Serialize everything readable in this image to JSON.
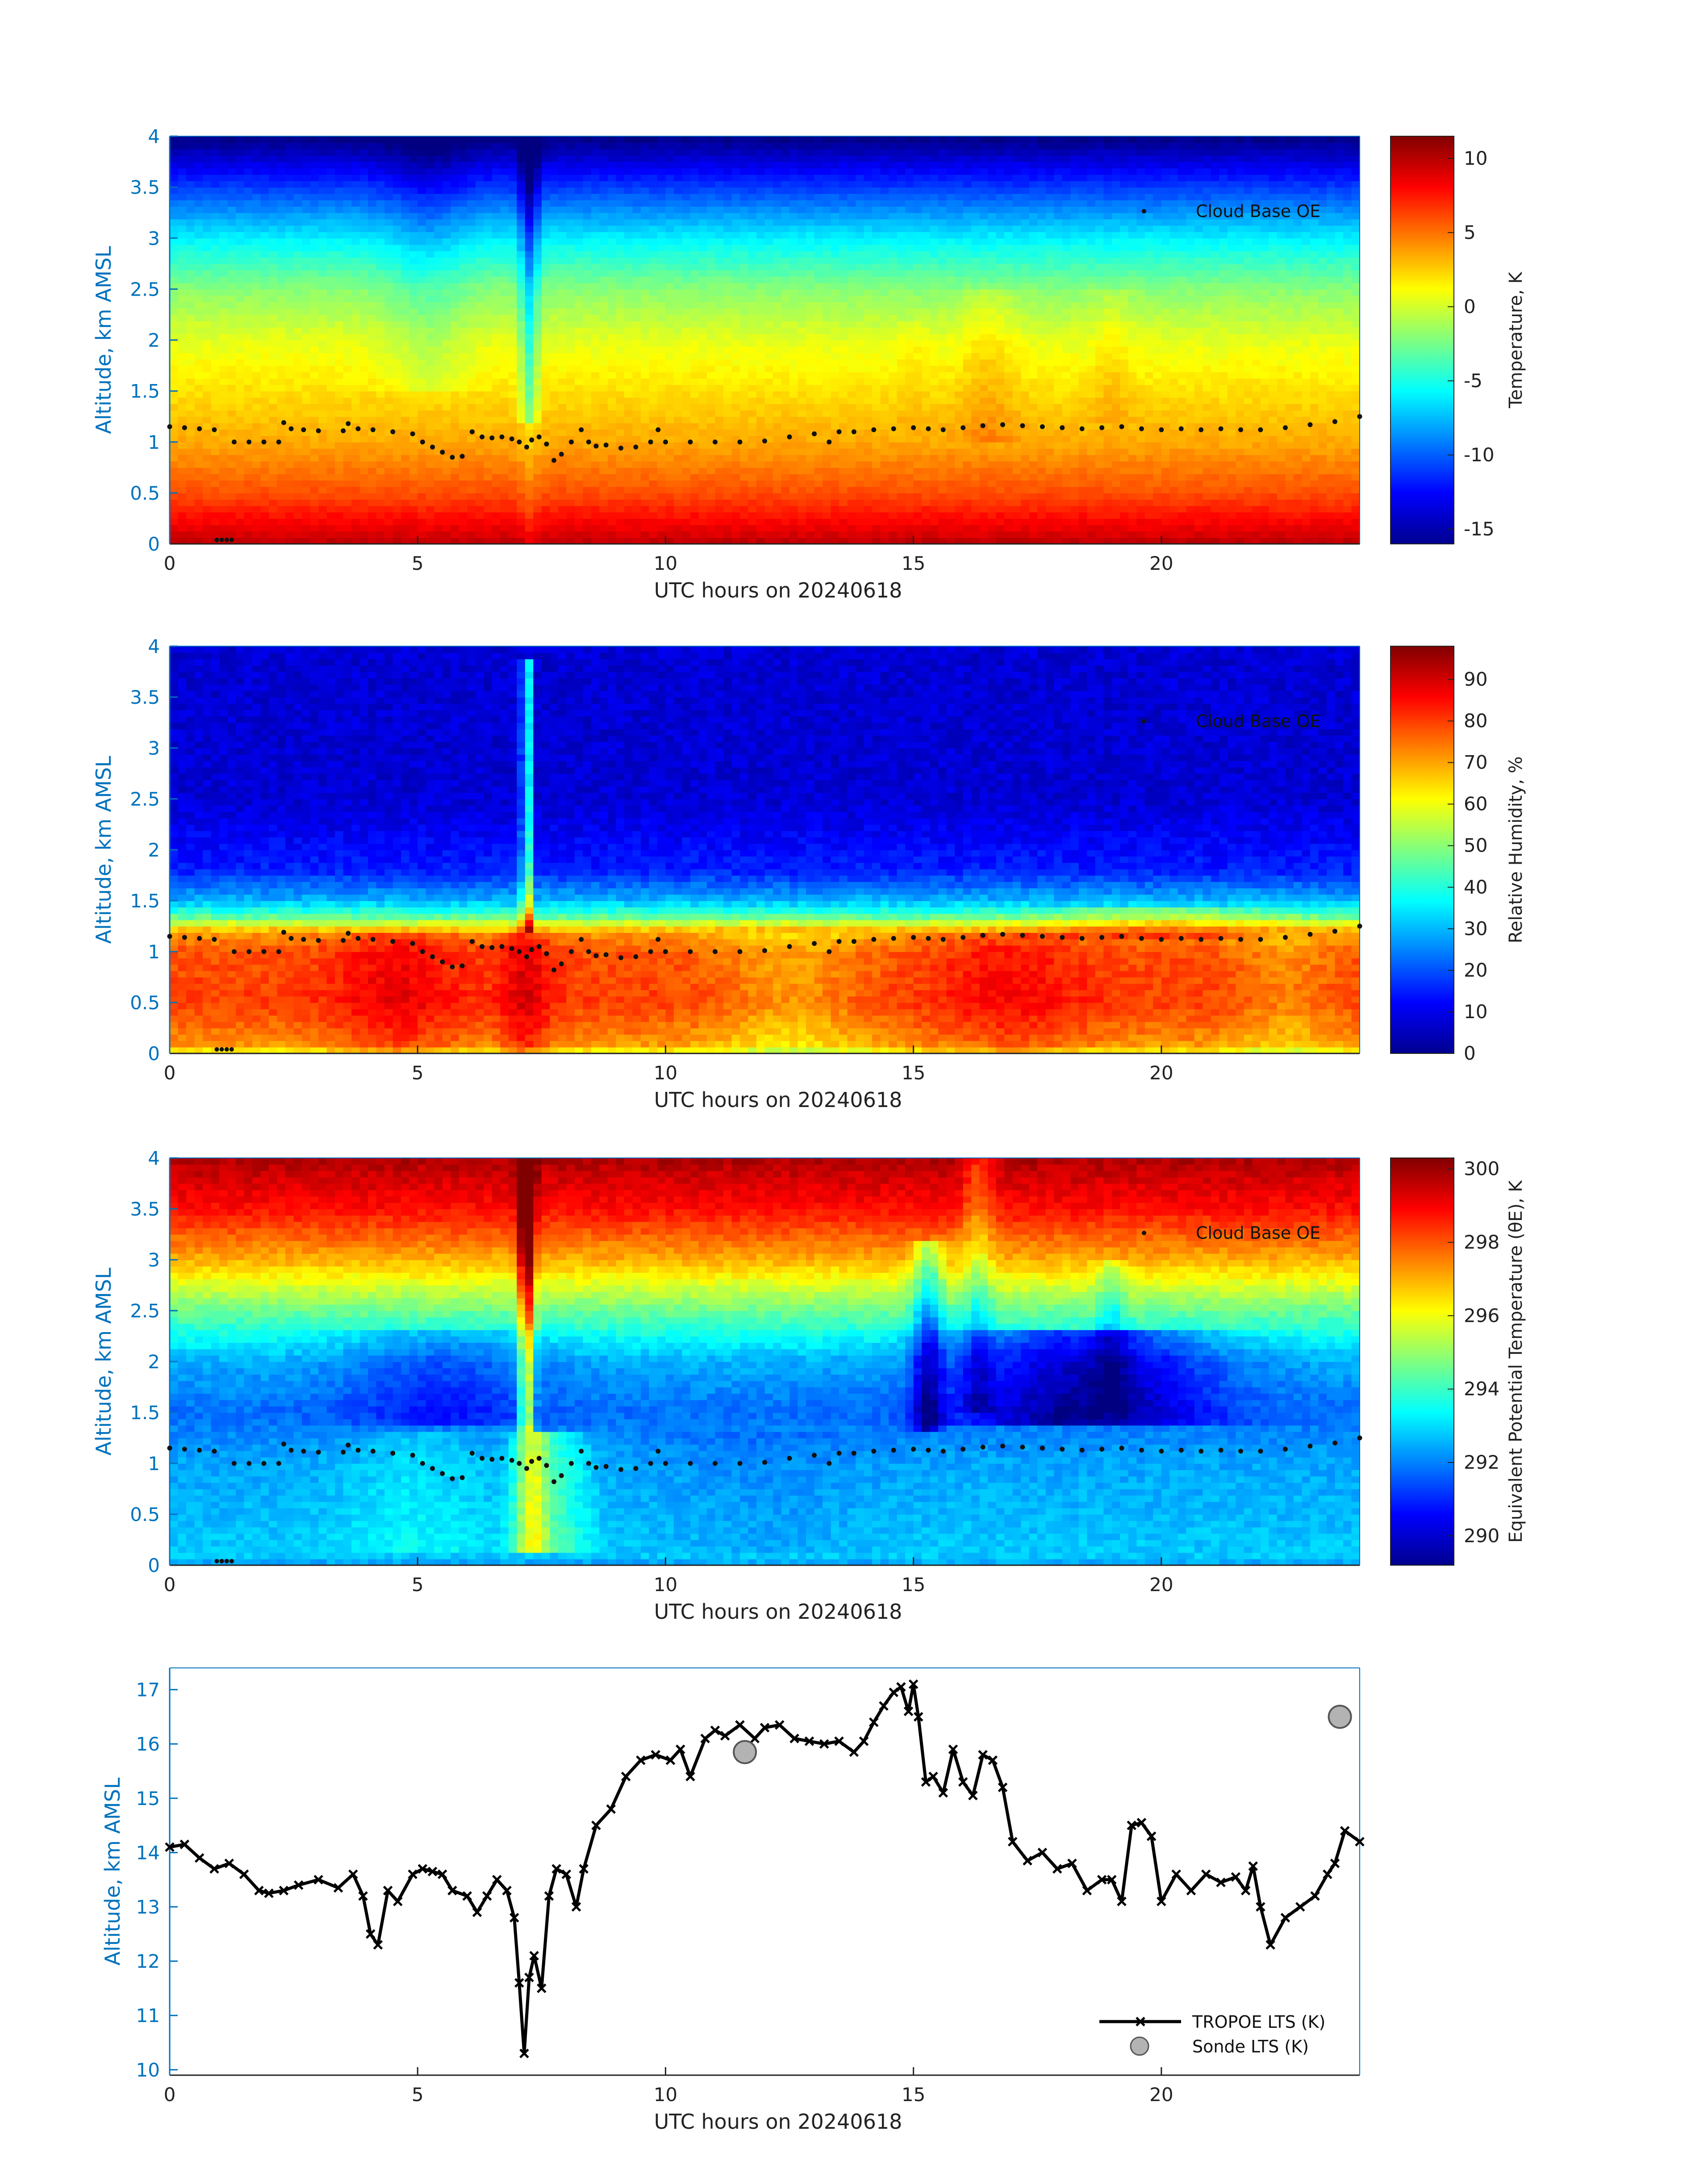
{
  "chart_data": [
    {
      "type": "heatmap",
      "id": "temp",
      "field": "temperature",
      "xlabel": "UTC hours on 20240618",
      "ylabel": "Altitude, km AMSL",
      "xlim": [
        0,
        24
      ],
      "ylim": [
        0,
        4
      ],
      "xticks": [
        "0",
        "5",
        "10",
        "15",
        "20"
      ],
      "yticks": [
        "0",
        "0.5",
        "1",
        "1.5",
        "2",
        "2.5",
        "3",
        "3.5",
        "4"
      ],
      "colorbar": {
        "label": "Temperature, K",
        "range": [
          -16,
          11.5
        ],
        "ticks": [
          "10",
          "5",
          "0",
          "-5",
          "-10",
          "-15"
        ],
        "tick_values": [
          10,
          5,
          0,
          -5,
          -10,
          -15
        ]
      },
      "legend": {
        "entry": "Cloud Base OE",
        "position": "top-right"
      },
      "profile": {
        "heights_km": [
          0,
          0.1,
          0.5,
          1.0,
          1.5,
          2.0,
          2.5,
          3.0,
          3.5,
          4.0
        ],
        "values": [
          10,
          9,
          6,
          3.5,
          2,
          0.5,
          -2,
          -6,
          -11,
          -16
        ]
      }
    },
    {
      "type": "heatmap",
      "id": "rh",
      "field": "relative_humidity",
      "xlabel": "UTC hours on 20240618",
      "ylabel": "Altitude, km AMSL",
      "xlim": [
        0,
        24
      ],
      "ylim": [
        0,
        4
      ],
      "xticks": [
        "0",
        "5",
        "10",
        "15",
        "20"
      ],
      "yticks": [
        "0",
        "0.5",
        "1",
        "1.5",
        "2",
        "2.5",
        "3",
        "3.5",
        "4"
      ],
      "colorbar": {
        "label": "Relative Humidity, %",
        "range": [
          0,
          98
        ],
        "ticks": [
          "90",
          "80",
          "70",
          "60",
          "50",
          "40",
          "30",
          "20",
          "10",
          "0"
        ],
        "tick_values": [
          90,
          80,
          70,
          60,
          50,
          40,
          30,
          20,
          10,
          0
        ]
      },
      "legend": {
        "entry": "Cloud Base OE",
        "position": "top-right"
      },
      "profile": {
        "heights_km": [
          0,
          0.1,
          0.5,
          1.0,
          1.2,
          1.35,
          1.5,
          1.8,
          2.5,
          4.0
        ],
        "values": [
          60,
          72,
          80,
          78,
          70,
          45,
          30,
          15,
          8,
          8
        ]
      }
    },
    {
      "type": "heatmap",
      "id": "thetae",
      "field": "equivalent_potential_temperature",
      "xlabel": "UTC hours on 20240618",
      "ylabel": "Altitude, km AMSL",
      "xlim": [
        0,
        24
      ],
      "ylim": [
        0,
        4
      ],
      "xticks": [
        "0",
        "5",
        "10",
        "15",
        "20"
      ],
      "yticks": [
        "0",
        "0.5",
        "1",
        "1.5",
        "2",
        "2.5",
        "3",
        "3.5",
        "4"
      ],
      "colorbar": {
        "label": "Equivalent Potential Temperature (θE), K",
        "range": [
          289.2,
          300.3
        ],
        "ticks": [
          "300",
          "298",
          "296",
          "294",
          "292",
          "290"
        ],
        "tick_values": [
          300,
          298,
          296,
          294,
          292,
          290
        ]
      },
      "legend": {
        "entry": "Cloud Base OE",
        "position": "top-right"
      },
      "profile": {
        "heights_km": [
          0,
          0.1,
          0.5,
          1.0,
          1.5,
          2.0,
          2.5,
          3.0,
          3.5,
          4.0
        ],
        "values": [
          292.3,
          292.8,
          292.6,
          292.4,
          291.8,
          292.5,
          294.5,
          297.0,
          298.8,
          299.8
        ]
      }
    },
    {
      "type": "line",
      "id": "lts",
      "xlabel": "UTC hours on 20240618",
      "ylabel": "Altitude, km AMSL",
      "xlim": [
        0,
        24
      ],
      "ylim": [
        9.9,
        17.4
      ],
      "xticks": [
        "0",
        "5",
        "10",
        "15",
        "20"
      ],
      "yticks": [
        "10",
        "11",
        "12",
        "13",
        "14",
        "15",
        "16",
        "17"
      ],
      "legend_position": "bottom-right",
      "series": [
        {
          "name": "TROPOE LTS (K)",
          "marker": "x",
          "x": [
            0,
            0.3,
            0.6,
            0.9,
            1.2,
            1.5,
            1.8,
            2.0,
            2.3,
            2.6,
            3.0,
            3.4,
            3.7,
            3.9,
            4.05,
            4.2,
            4.4,
            4.6,
            4.9,
            5.1,
            5.3,
            5.5,
            5.7,
            6.0,
            6.2,
            6.4,
            6.6,
            6.8,
            6.95,
            7.05,
            7.15,
            7.25,
            7.35,
            7.5,
            7.65,
            7.8,
            8.0,
            8.2,
            8.35,
            8.6,
            8.9,
            9.2,
            9.5,
            9.8,
            10.1,
            10.3,
            10.5,
            10.8,
            11.0,
            11.2,
            11.5,
            11.8,
            12.0,
            12.3,
            12.6,
            12.9,
            13.2,
            13.5,
            13.8,
            14.0,
            14.2,
            14.4,
            14.6,
            14.75,
            14.9,
            15.0,
            15.1,
            15.25,
            15.4,
            15.6,
            15.8,
            16.0,
            16.2,
            16.4,
            16.6,
            16.8,
            17.0,
            17.3,
            17.6,
            17.9,
            18.2,
            18.5,
            18.8,
            19.0,
            19.2,
            19.4,
            19.6,
            19.8,
            20.0,
            20.3,
            20.6,
            20.9,
            21.2,
            21.5,
            21.7,
            21.85,
            22.0,
            22.2,
            22.5,
            22.8,
            23.1,
            23.35,
            23.5,
            23.7,
            24.0
          ],
          "y": [
            14.1,
            14.15,
            13.9,
            13.7,
            13.8,
            13.6,
            13.3,
            13.25,
            13.3,
            13.4,
            13.5,
            13.35,
            13.6,
            13.2,
            12.5,
            12.3,
            13.3,
            13.1,
            13.6,
            13.7,
            13.65,
            13.6,
            13.3,
            13.2,
            12.9,
            13.2,
            13.5,
            13.3,
            12.8,
            11.6,
            10.3,
            11.7,
            12.1,
            11.5,
            13.2,
            13.7,
            13.6,
            13.0,
            13.7,
            14.5,
            14.8,
            15.4,
            15.7,
            15.8,
            15.7,
            15.9,
            15.4,
            16.1,
            16.25,
            16.15,
            16.35,
            16.1,
            16.3,
            16.35,
            16.1,
            16.05,
            16.0,
            16.05,
            15.85,
            16.05,
            16.4,
            16.7,
            16.95,
            17.05,
            16.6,
            17.1,
            16.5,
            15.3,
            15.4,
            15.1,
            15.9,
            15.3,
            15.05,
            15.8,
            15.7,
            15.2,
            14.2,
            13.85,
            14.0,
            13.7,
            13.8,
            13.3,
            13.5,
            13.5,
            13.1,
            14.5,
            14.55,
            14.3,
            13.1,
            13.6,
            13.3,
            13.6,
            13.45,
            13.55,
            13.3,
            13.75,
            13.0,
            12.3,
            12.8,
            13.0,
            13.2,
            13.6,
            13.8,
            14.4,
            14.2
          ]
        },
        {
          "name": "Sonde LTS (K)",
          "marker": "circle",
          "x": [
            11.6,
            23.6
          ],
          "y": [
            15.85,
            16.5
          ]
        }
      ]
    }
  ],
  "cloud_base": {
    "name": "Cloud Base OE",
    "x": [
      0.0,
      0.3,
      0.6,
      0.9,
      1.3,
      1.6,
      1.9,
      2.2,
      2.3,
      2.45,
      2.7,
      3.0,
      3.5,
      3.6,
      3.8,
      4.1,
      4.5,
      4.9,
      5.1,
      5.3,
      5.5,
      5.7,
      5.9,
      6.1,
      6.3,
      6.5,
      6.7,
      6.9,
      7.05,
      7.2,
      7.3,
      7.45,
      7.6,
      7.75,
      7.9,
      8.1,
      8.3,
      8.45,
      8.6,
      8.8,
      9.1,
      9.4,
      9.7,
      9.85,
      10.0,
      10.5,
      11.0,
      11.5,
      12.0,
      12.5,
      13.0,
      13.3,
      13.5,
      13.8,
      14.2,
      14.6,
      15.0,
      15.3,
      15.6,
      16.0,
      16.4,
      16.8,
      17.2,
      17.6,
      18.0,
      18.4,
      18.8,
      19.2,
      19.6,
      20.0,
      20.4,
      20.8,
      21.2,
      21.6,
      22.0,
      22.5,
      23.0,
      23.5,
      24.0
    ],
    "y": [
      1.15,
      1.14,
      1.13,
      1.12,
      1.0,
      1.0,
      1.0,
      1.0,
      1.19,
      1.13,
      1.12,
      1.11,
      1.11,
      1.18,
      1.13,
      1.12,
      1.1,
      1.08,
      1.0,
      0.95,
      0.9,
      0.85,
      0.86,
      1.1,
      1.05,
      1.04,
      1.05,
      1.03,
      1.0,
      0.95,
      1.02,
      1.05,
      0.98,
      0.82,
      0.88,
      1.0,
      1.12,
      1.0,
      0.96,
      0.97,
      0.94,
      0.95,
      1.0,
      1.12,
      1.0,
      1.0,
      1.0,
      1.0,
      1.01,
      1.05,
      1.08,
      1.0,
      1.1,
      1.1,
      1.12,
      1.13,
      1.14,
      1.13,
      1.12,
      1.14,
      1.16,
      1.17,
      1.16,
      1.15,
      1.14,
      1.13,
      1.14,
      1.15,
      1.13,
      1.12,
      1.13,
      1.12,
      1.13,
      1.12,
      1.12,
      1.14,
      1.17,
      1.2,
      1.25
    ],
    "near_surface_x": [
      0.95,
      1.05,
      1.15,
      1.25
    ],
    "near_surface_y": [
      0.04,
      0.04,
      0.04,
      0.04
    ]
  }
}
